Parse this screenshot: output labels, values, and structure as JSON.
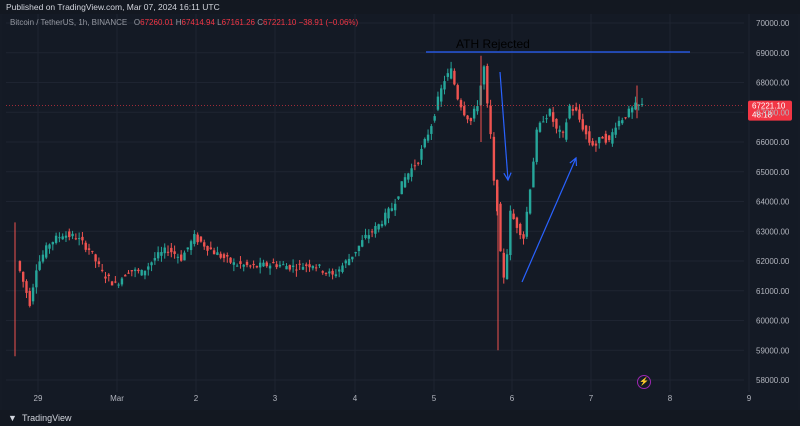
{
  "header": {
    "published": "Published on TradingView.com, Mar 07, 2024 16:11 UTC"
  },
  "symbol": {
    "name": "Bitcoin / TetherUS, 1h, BINANCE",
    "open_label": "O",
    "open": "67260.01",
    "high_label": "H",
    "high": "67414.94",
    "low_label": "L",
    "low": "67161.26",
    "close_label": "C",
    "close": "67221.10",
    "change": "−38.91 (−0.06%)"
  },
  "price_tag": {
    "price": "67221.10",
    "countdown": "48:18",
    "color": "#f23645"
  },
  "footer": {
    "brand": "TradingView",
    "logo_icon": "tradingview-logo-icon"
  },
  "annotation": {
    "text": "ATH Rejected",
    "line_color": "#2962ff"
  },
  "colors": {
    "up": "#26a69a",
    "down": "#ef5350",
    "background": "#141a25",
    "grid": "#1e2431"
  },
  "chart_data": {
    "type": "candlestick",
    "title": "",
    "ylim": [
      58000,
      70000
    ],
    "y_ticks": [
      "70000.00",
      "69000.00",
      "68000.00",
      "67000.00",
      "66000.00",
      "65000.00",
      "64000.00",
      "63000.00",
      "62000.00",
      "61000.00",
      "60000.00",
      "59000.00",
      "58000.00"
    ],
    "x_ticks": [
      "29",
      "Mar",
      "2",
      "3",
      "4",
      "5",
      "6",
      "7",
      "8",
      "9"
    ],
    "last_price": 67221.1,
    "series": [
      {
        "x": "Feb 28 18:00",
        "y": 62000
      },
      {
        "x": "Feb 28 20:00",
        "y": 61300
      },
      {
        "x": "Feb 28 22:00",
        "y": 60600
      },
      {
        "x": "Feb 29 00:00",
        "y": 61800
      },
      {
        "x": "Feb 29 04:00",
        "y": 62600
      },
      {
        "x": "Feb 29 08:00",
        "y": 62900
      },
      {
        "x": "Feb 29 12:00",
        "y": 62800
      },
      {
        "x": "Feb 29 16:00",
        "y": 62400
      },
      {
        "x": "Feb 29 20:00",
        "y": 61600
      },
      {
        "x": "Mar 1 00:00",
        "y": 61200
      },
      {
        "x": "Mar 1 04:00",
        "y": 61700
      },
      {
        "x": "Mar 1 08:00",
        "y": 61600
      },
      {
        "x": "Mar 1 12:00",
        "y": 62100
      },
      {
        "x": "Mar 1 16:00",
        "y": 62400
      },
      {
        "x": "Mar 1 20:00",
        "y": 62100
      },
      {
        "x": "Mar 2 00:00",
        "y": 62800
      },
      {
        "x": "Mar 2 06:00",
        "y": 62300
      },
      {
        "x": "Mar 2 12:00",
        "y": 61900
      },
      {
        "x": "Mar 2 18:00",
        "y": 61800
      },
      {
        "x": "Mar 3 00:00",
        "y": 61900
      },
      {
        "x": "Mar 3 06:00",
        "y": 61800
      },
      {
        "x": "Mar 3 12:00",
        "y": 61900
      },
      {
        "x": "Mar 3 18:00",
        "y": 61500
      },
      {
        "x": "Mar 4 00:00",
        "y": 62200
      },
      {
        "x": "Mar 4 04:00",
        "y": 62800
      },
      {
        "x": "Mar 4 08:00",
        "y": 63200
      },
      {
        "x": "Mar 4 12:00",
        "y": 63800
      },
      {
        "x": "Mar 4 16:00",
        "y": 64800
      },
      {
        "x": "Mar 4 20:00",
        "y": 65400
      },
      {
        "x": "Mar 5 00:00",
        "y": 66600
      },
      {
        "x": "Mar 5 02:00",
        "y": 67400
      },
      {
        "x": "Mar 5 04:00",
        "y": 68100
      },
      {
        "x": "Mar 5 06:00",
        "y": 68400
      },
      {
        "x": "Mar 5 08:00",
        "y": 67500
      },
      {
        "x": "Mar 5 10:00",
        "y": 67000
      },
      {
        "x": "Mar 5 12:00",
        "y": 66700
      },
      {
        "x": "Mar 5 14:00",
        "y": 67300
      },
      {
        "x": "Mar 5 16:00",
        "y": 68500
      },
      {
        "x": "Mar 5 17:00",
        "y": 67200
      },
      {
        "x": "Mar 5 18:00",
        "y": 66200
      },
      {
        "x": "Mar 5 19:00",
        "y": 64600
      },
      {
        "x": "Mar 5 20:00",
        "y": 63800
      },
      {
        "x": "Mar 5 21:00",
        "y": 62200
      },
      {
        "x": "Mar 5 22:00",
        "y": 61500
      },
      {
        "x": "Mar 5 23:00",
        "y": 62300
      },
      {
        "x": "Mar 6 00:00",
        "y": 63600
      },
      {
        "x": "Mar 6 02:00",
        "y": 63200
      },
      {
        "x": "Mar 6 04:00",
        "y": 62800
      },
      {
        "x": "Mar 6 06:00",
        "y": 64500
      },
      {
        "x": "Mar 6 08:00",
        "y": 66300
      },
      {
        "x": "Mar 6 10:00",
        "y": 66800
      },
      {
        "x": "Mar 6 12:00",
        "y": 67000
      },
      {
        "x": "Mar 6 14:00",
        "y": 66400
      },
      {
        "x": "Mar 6 16:00",
        "y": 66200
      },
      {
        "x": "Mar 6 18:00",
        "y": 67200
      },
      {
        "x": "Mar 6 20:00",
        "y": 67000
      },
      {
        "x": "Mar 6 22:00",
        "y": 66500
      },
      {
        "x": "Mar 7 00:00",
        "y": 66000
      },
      {
        "x": "Mar 7 02:00",
        "y": 65900
      },
      {
        "x": "Mar 7 04:00",
        "y": 66200
      },
      {
        "x": "Mar 7 06:00",
        "y": 66000
      },
      {
        "x": "Mar 7 08:00",
        "y": 66600
      },
      {
        "x": "Mar 7 10:00",
        "y": 66800
      },
      {
        "x": "Mar 7 12:00",
        "y": 67000
      },
      {
        "x": "Mar 7 14:00",
        "y": 67200
      },
      {
        "x": "Mar 7 16:00",
        "y": 67221.1
      }
    ]
  }
}
